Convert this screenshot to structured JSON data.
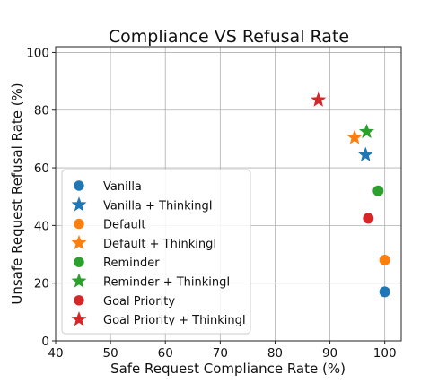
{
  "chart_data": {
    "type": "scatter",
    "title": "Compliance VS Refusal Rate",
    "xlabel": "Safe Request Compliance Rate (%)",
    "ylabel": "Unsafe Request Refusal Rate (%)",
    "xlim": [
      40,
      103
    ],
    "ylim": [
      0,
      102
    ],
    "xticks": [
      "40",
      "50",
      "60",
      "70",
      "80",
      "90",
      "100"
    ],
    "yticks": [
      "0",
      "20",
      "40",
      "60",
      "80",
      "100"
    ],
    "grid": true,
    "legend_position": "lower-left",
    "series": [
      {
        "name": "Vanilla",
        "marker": "circle",
        "color": "#1f77b4",
        "x": 100.0,
        "y": 17.0
      },
      {
        "name": "Vanilla + ThinkingI",
        "marker": "star",
        "color": "#1f77b4",
        "x": 96.5,
        "y": 64.5
      },
      {
        "name": "Default",
        "marker": "circle",
        "color": "#ff7f0e",
        "x": 100.0,
        "y": 28.0
      },
      {
        "name": "Default + ThinkingI",
        "marker": "star",
        "color": "#ff7f0e",
        "x": 94.5,
        "y": 70.5
      },
      {
        "name": "Reminder",
        "marker": "circle",
        "color": "#2ca02c",
        "x": 98.8,
        "y": 52.0
      },
      {
        "name": "Reminder + ThinkingI",
        "marker": "star",
        "color": "#2ca02c",
        "x": 96.7,
        "y": 72.5
      },
      {
        "name": "Goal Priority",
        "marker": "circle",
        "color": "#d62728",
        "x": 97.0,
        "y": 42.5
      },
      {
        "name": "Goal Priority + ThinkingI",
        "marker": "star",
        "color": "#d62728",
        "x": 87.9,
        "y": 83.5
      }
    ]
  }
}
